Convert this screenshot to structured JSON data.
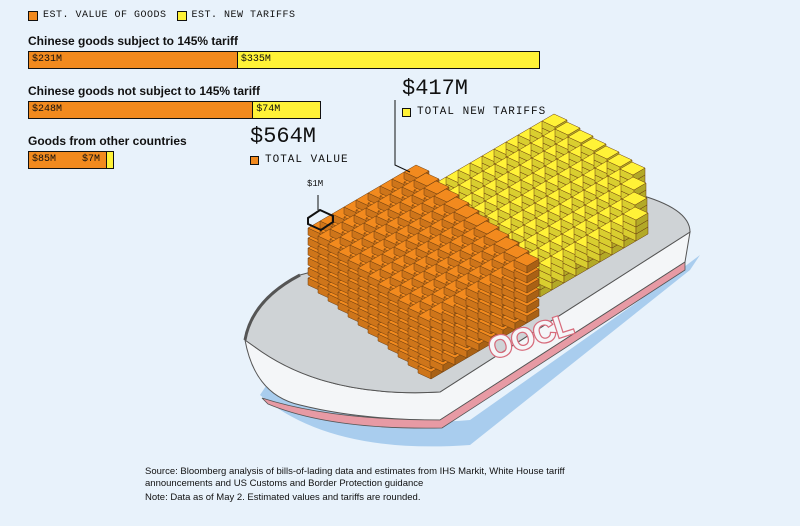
{
  "colors": {
    "value": "#f28a1e",
    "tariff": "#fff237",
    "background": "#e8f2fb"
  },
  "legend": [
    {
      "label": "EST. VALUE OF GOODS",
      "color": "#f28a1e"
    },
    {
      "label": "EST. NEW TARIFFS",
      "color": "#fff237"
    }
  ],
  "chart_data": {
    "type": "bar",
    "orientation": "horizontal",
    "stacked": true,
    "categories": [
      "Chinese goods subject to 145% tariff",
      "Chinese goods not subject to 145% tariff",
      "Goods from other countries"
    ],
    "series": [
      {
        "name": "EST. VALUE OF GOODS",
        "values": [
          231,
          248,
          85
        ],
        "labels": [
          "$231M",
          "$248M",
          "$85M"
        ]
      },
      {
        "name": "EST. NEW TARIFFS",
        "values": [
          335,
          74,
          7
        ],
        "labels": [
          "$335M",
          "$74M",
          "$7M"
        ]
      }
    ],
    "unit": "$M"
  },
  "totals": {
    "total_value": {
      "amount": "$564M",
      "label": "TOTAL VALUE"
    },
    "total_tariffs": {
      "amount": "$417M",
      "label": "TOTAL NEW TARIFFS"
    },
    "unit_callout": "$1M"
  },
  "ship": {
    "brand": "OOCL"
  },
  "footer": {
    "source": "Source: Bloomberg analysis of bills-of-lading data and estimates from IHS Markit, White House tariff announcements and US Customs and Border Protection guidance",
    "note": "Note: Data as of May 2. Estimated values and tariffs are rounded."
  }
}
